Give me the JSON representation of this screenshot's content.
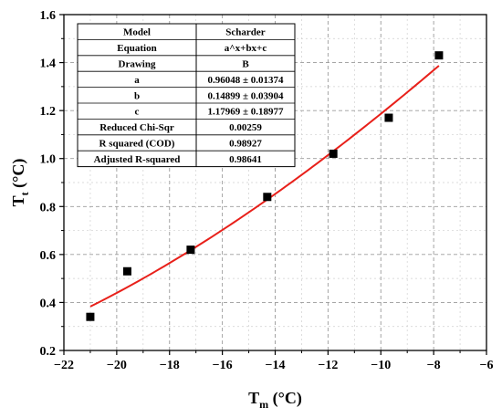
{
  "chart_data": {
    "type": "scatter",
    "x_axis": {
      "label_main": "T",
      "label_sub": "m",
      "label_unit": " (°C)",
      "range": [
        -22,
        -6
      ],
      "ticks": [
        -22,
        -20,
        -18,
        -16,
        -14,
        -12,
        -10,
        -8,
        -6
      ],
      "tick_labels": [
        "−22",
        "−20",
        "−18",
        "−16",
        "−14",
        "−12",
        "−10",
        "−8",
        "−6"
      ],
      "minor_step": 1
    },
    "y_axis": {
      "label_main": "T",
      "label_sub": "t",
      "label_unit": " (°C)",
      "range": [
        0.2,
        1.6
      ],
      "ticks": [
        0.2,
        0.4,
        0.6,
        0.8,
        1.0,
        1.2,
        1.4,
        1.6
      ],
      "tick_labels": [
        "0.2",
        "0.4",
        "0.6",
        "0.8",
        "1.0",
        "1.2",
        "1.4",
        "1.6"
      ],
      "minor_step": 0.1
    },
    "grid": true,
    "series": [
      {
        "kind": "points",
        "marker": "square",
        "color": "#000000",
        "x": [
          -21.0,
          -19.6,
          -17.2,
          -14.3,
          -11.8,
          -9.7,
          -7.8
        ],
        "y": [
          0.34,
          0.53,
          0.62,
          0.84,
          1.02,
          1.17,
          1.43
        ]
      },
      {
        "kind": "fit-curve",
        "color": "#e8201a",
        "equation_terms": {
          "a": 0.96048,
          "b": 0.14899,
          "c": 1.17969
        },
        "x_range": [
          -21.0,
          -7.8
        ]
      }
    ],
    "fit_table": {
      "rows": [
        [
          "Model",
          "Scharder"
        ],
        [
          "Equation",
          "a^x+bx+c"
        ],
        [
          "Drawing",
          "B"
        ],
        [
          "a",
          "0.96048 ± 0.01374"
        ],
        [
          "b",
          "0.14899 ± 0.03904"
        ],
        [
          "c",
          "1.17969 ± 0.18977"
        ],
        [
          "Reduced Chi-Sqr",
          "0.00259"
        ],
        [
          "R squared (COD)",
          "0.98927"
        ],
        [
          "Adjusted R-squared",
          "0.98641"
        ]
      ]
    }
  }
}
